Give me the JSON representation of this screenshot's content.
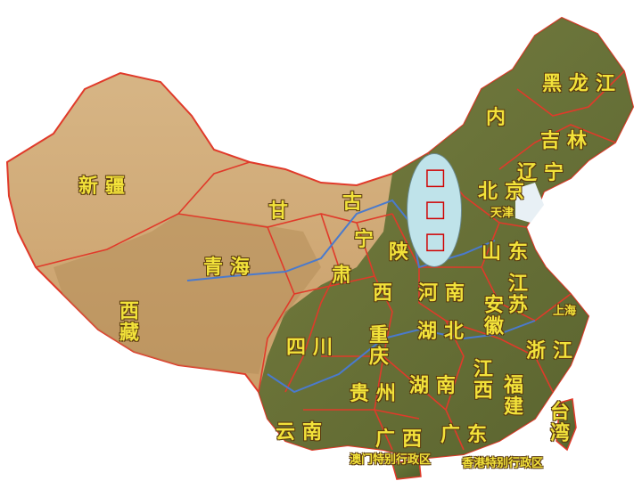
{
  "map": {
    "provinces": [
      {
        "id": "heilongjiang",
        "label": "黑龙江"
      },
      {
        "id": "jilin",
        "label": "吉林"
      },
      {
        "id": "liaoning",
        "label": "辽宁"
      },
      {
        "id": "neimenggu-1",
        "label": "内"
      },
      {
        "id": "neimenggu-2",
        "label": "古"
      },
      {
        "id": "beijing",
        "label": "北京"
      },
      {
        "id": "tianjin",
        "label": "天津"
      },
      {
        "id": "xinjiang",
        "label": "新疆"
      },
      {
        "id": "gansu-1",
        "label": "甘"
      },
      {
        "id": "gansu-2",
        "label": "肃"
      },
      {
        "id": "ningxia",
        "label": "宁"
      },
      {
        "id": "shaanxi-1",
        "label": "陕"
      },
      {
        "id": "shaanxi-2",
        "label": "西"
      },
      {
        "id": "shandong",
        "label": "山东"
      },
      {
        "id": "qinghai",
        "label": "青海"
      },
      {
        "id": "henan",
        "label": "河南"
      },
      {
        "id": "jiangsu",
        "label": "江苏"
      },
      {
        "id": "anhui",
        "label": "安徽"
      },
      {
        "id": "shanghai",
        "label": "上海"
      },
      {
        "id": "xizang",
        "label": "西藏"
      },
      {
        "id": "sichuan",
        "label": "四川"
      },
      {
        "id": "chongqing",
        "label": "重庆"
      },
      {
        "id": "hubei",
        "label": "湖北"
      },
      {
        "id": "zhejiang",
        "label": "浙江"
      },
      {
        "id": "jiangxi",
        "label": "江西"
      },
      {
        "id": "guizhou",
        "label": "贵州"
      },
      {
        "id": "hunan",
        "label": "湖南"
      },
      {
        "id": "fujian",
        "label": "福建"
      },
      {
        "id": "taiwan",
        "label": "台湾"
      },
      {
        "id": "yunnan",
        "label": "云南"
      },
      {
        "id": "guangxi",
        "label": "广西"
      },
      {
        "id": "guangdong",
        "label": "广东"
      },
      {
        "id": "macau",
        "label": "澳门特别行政区"
      },
      {
        "id": "hongkong",
        "label": "香港特别行政区"
      }
    ],
    "overlay_text": [
      "□",
      "□",
      "□"
    ],
    "colors": {
      "label": "#f2e23a",
      "border": "#e03a2a",
      "river": "#4a7acd",
      "overlay_fill": "#bfe3ea",
      "overlay_text": "#d00000"
    }
  }
}
